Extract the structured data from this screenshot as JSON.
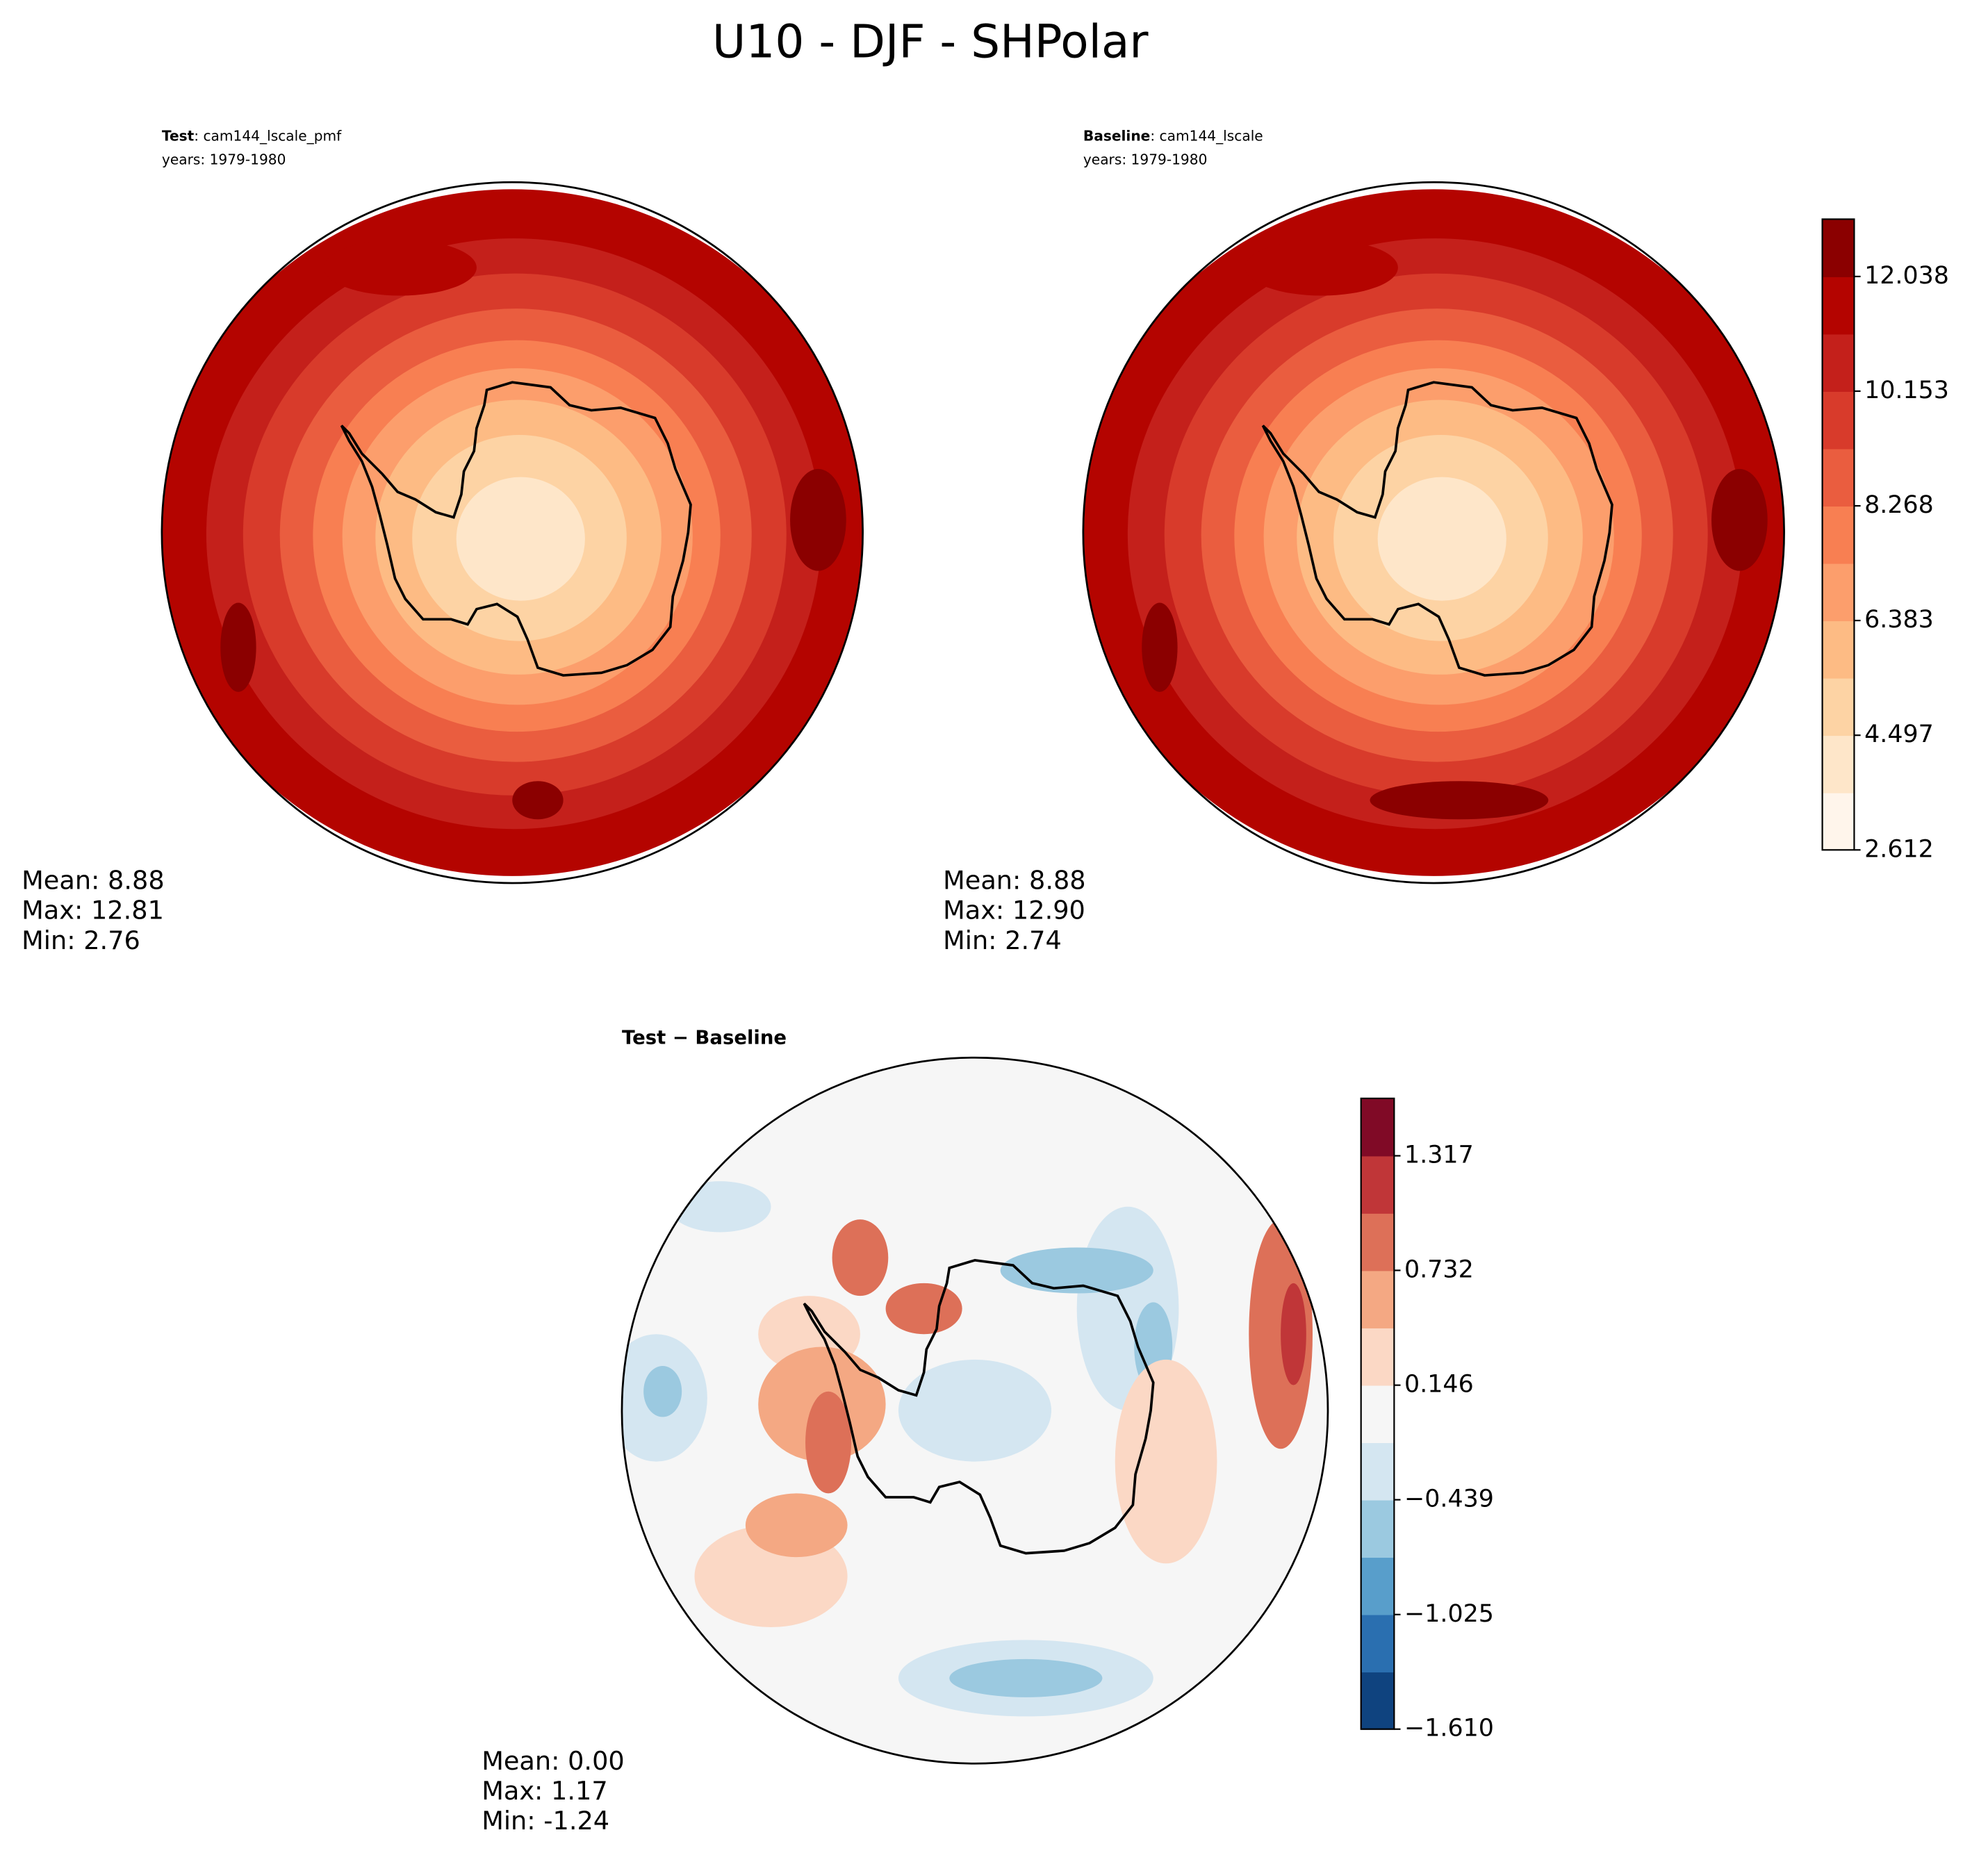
{
  "title": "U10 - DJF - SHPolar",
  "chart_data": [
    {
      "type": "map",
      "label": "Test",
      "case": ": cam144_lscale_pmf",
      "years": "years: 1979-1980",
      "stats": [
        "Mean:  8.88",
        "Max: 12.81",
        "Min:  2.76"
      ]
    },
    {
      "type": "map",
      "label": "Baseline",
      "case": ": cam144_lscale",
      "years": "years: 1979-1980",
      "stats": [
        "Mean:  8.88",
        "Max: 12.90",
        "Min:  2.74"
      ],
      "colorbar": {
        "lim": [
          2.612,
          12.98
        ],
        "ticks": [
          2.612,
          4.497,
          6.383,
          8.268,
          10.153,
          12.038
        ],
        "colors": [
          "#fff5eb",
          "#fee6c9",
          "#fdd3a4",
          "#fdbb84",
          "#fc9e6c",
          "#f87f52",
          "#ea5d3f",
          "#d83b2b",
          "#c4201b",
          "#b40400",
          "#8b0000"
        ]
      }
    },
    {
      "type": "diff",
      "label": "Test − Baseline",
      "stats": [
        "Mean:  0.00",
        "Max:  1.17",
        "Min: -1.24"
      ],
      "colorbar": {
        "lim": [
          -1.61,
          1.61
        ],
        "ticks": [
          {
            "value": -1.61,
            "label": "−1.610"
          },
          {
            "value": -1.025,
            "label": "−1.025"
          },
          {
            "value": -0.439,
            "label": "−0.439"
          },
          0.146,
          0.732,
          1.317
        ],
        "colors": [
          "#0f437f",
          "#2a6fb0",
          "#589ecb",
          "#9bc9e0",
          "#d4e6f1",
          "#f6f6f6",
          "#fbd8c5",
          "#f4a883",
          "#dd7058",
          "#c03638",
          "#800a26"
        ]
      }
    }
  ]
}
